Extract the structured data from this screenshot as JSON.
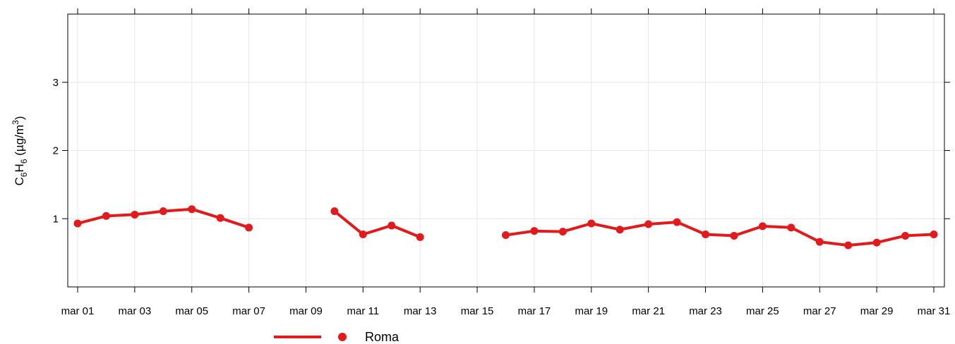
{
  "chart_data": {
    "type": "line",
    "title": "",
    "xlabel": "",
    "ylabel": "C6H6 (µg/m3)",
    "ylabel_parts": {
      "base1": "C",
      "sub1": "6",
      "base2": "H",
      "sub2": "6",
      "unit_open": " (µg/m",
      "sup": "3",
      "unit_close": ")"
    },
    "ylim": [
      0,
      4
    ],
    "yticks": [
      1,
      2,
      3
    ],
    "ytick_labels": [
      "1",
      "2",
      "3"
    ],
    "x_range_days": [
      1,
      31
    ],
    "xticks": [
      1,
      3,
      5,
      7,
      9,
      11,
      13,
      15,
      17,
      19,
      21,
      23,
      25,
      27,
      29,
      31
    ],
    "xtick_labels": [
      "mar 01",
      "mar 03",
      "mar 05",
      "mar 07",
      "mar 09",
      "mar 11",
      "mar 13",
      "mar 15",
      "mar 17",
      "mar 19",
      "mar 21",
      "mar 23",
      "mar 25",
      "mar 27",
      "mar 29",
      "mar 31"
    ],
    "grid": true,
    "legend_position": "bottom",
    "series": [
      {
        "name": "Roma",
        "color": "#e31a1c",
        "x": [
          "mar 01",
          "mar 02",
          "mar 03",
          "mar 04",
          "mar 05",
          "mar 06",
          "mar 07",
          "mar 08",
          "mar 09",
          "mar 10",
          "mar 11",
          "mar 12",
          "mar 13",
          "mar 14",
          "mar 15",
          "mar 16",
          "mar 17",
          "mar 18",
          "mar 19",
          "mar 20",
          "mar 21",
          "mar 22",
          "mar 23",
          "mar 24",
          "mar 25",
          "mar 26",
          "mar 27",
          "mar 28",
          "mar 29",
          "mar 30",
          "mar 31"
        ],
        "values": [
          0.93,
          1.04,
          1.06,
          1.11,
          1.14,
          1.01,
          0.87,
          null,
          null,
          1.11,
          0.77,
          0.9,
          0.73,
          null,
          null,
          0.76,
          0.82,
          0.81,
          0.93,
          0.84,
          0.92,
          0.95,
          0.77,
          0.75,
          0.89,
          0.87,
          0.66,
          0.61,
          0.65,
          0.75,
          0.77
        ]
      }
    ]
  }
}
